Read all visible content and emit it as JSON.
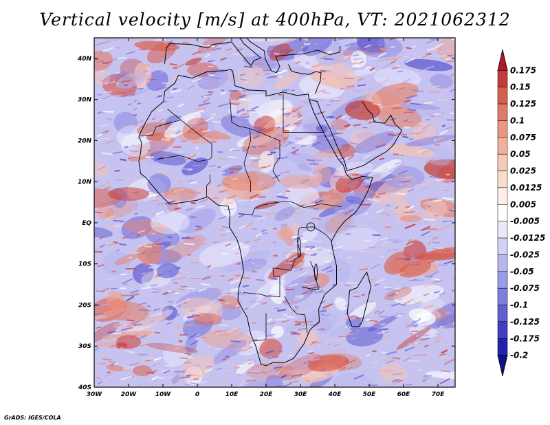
{
  "title": "Vertical velocity [m/s] at 400hPa, VT: 2021062312",
  "footer": "GrADS: IGES/COLA",
  "map": {
    "lon_range": [
      -30,
      75
    ],
    "lat_range": [
      -40,
      45
    ],
    "lat_ticks": [
      {
        "value": 40,
        "label": "40N"
      },
      {
        "value": 30,
        "label": "30N"
      },
      {
        "value": 20,
        "label": "20N"
      },
      {
        "value": 10,
        "label": "10N"
      },
      {
        "value": 0,
        "label": "EQ"
      },
      {
        "value": -10,
        "label": "10S"
      },
      {
        "value": -20,
        "label": "20S"
      },
      {
        "value": -30,
        "label": "30S"
      },
      {
        "value": -40,
        "label": "40S"
      }
    ],
    "lon_ticks": [
      {
        "value": -30,
        "label": "30W"
      },
      {
        "value": -20,
        "label": "20W"
      },
      {
        "value": -10,
        "label": "10W"
      },
      {
        "value": 0,
        "label": "0"
      },
      {
        "value": 10,
        "label": "10E"
      },
      {
        "value": 20,
        "label": "20E"
      },
      {
        "value": 30,
        "label": "30E"
      },
      {
        "value": 40,
        "label": "40E"
      },
      {
        "value": 50,
        "label": "50E"
      },
      {
        "value": 60,
        "label": "60E"
      },
      {
        "value": 70,
        "label": "70E"
      }
    ]
  },
  "colorbar": {
    "labels": [
      "0.175",
      "0.15",
      "0.125",
      "0.1",
      "0.075",
      "0.05",
      "0.025",
      "0.0125",
      "0.005",
      "-0.005",
      "-0.0125",
      "-0.025",
      "-0.05",
      "-0.075",
      "-0.1",
      "-0.125",
      "-0.175",
      "-0.2"
    ],
    "colors": [
      "#b2182b",
      "#c53a3c",
      "#d6604d",
      "#e07b68",
      "#ea9682",
      "#f1b19e",
      "#f6c9b8",
      "#fadccf",
      "#fdefe8",
      "#ffffff",
      "#e9e9fb",
      "#d2d2f6",
      "#b7b7ef",
      "#9b9be7",
      "#7e7edd",
      "#5f5fd0",
      "#3f3fc0",
      "#2222aa",
      "#10108a"
    ]
  }
}
